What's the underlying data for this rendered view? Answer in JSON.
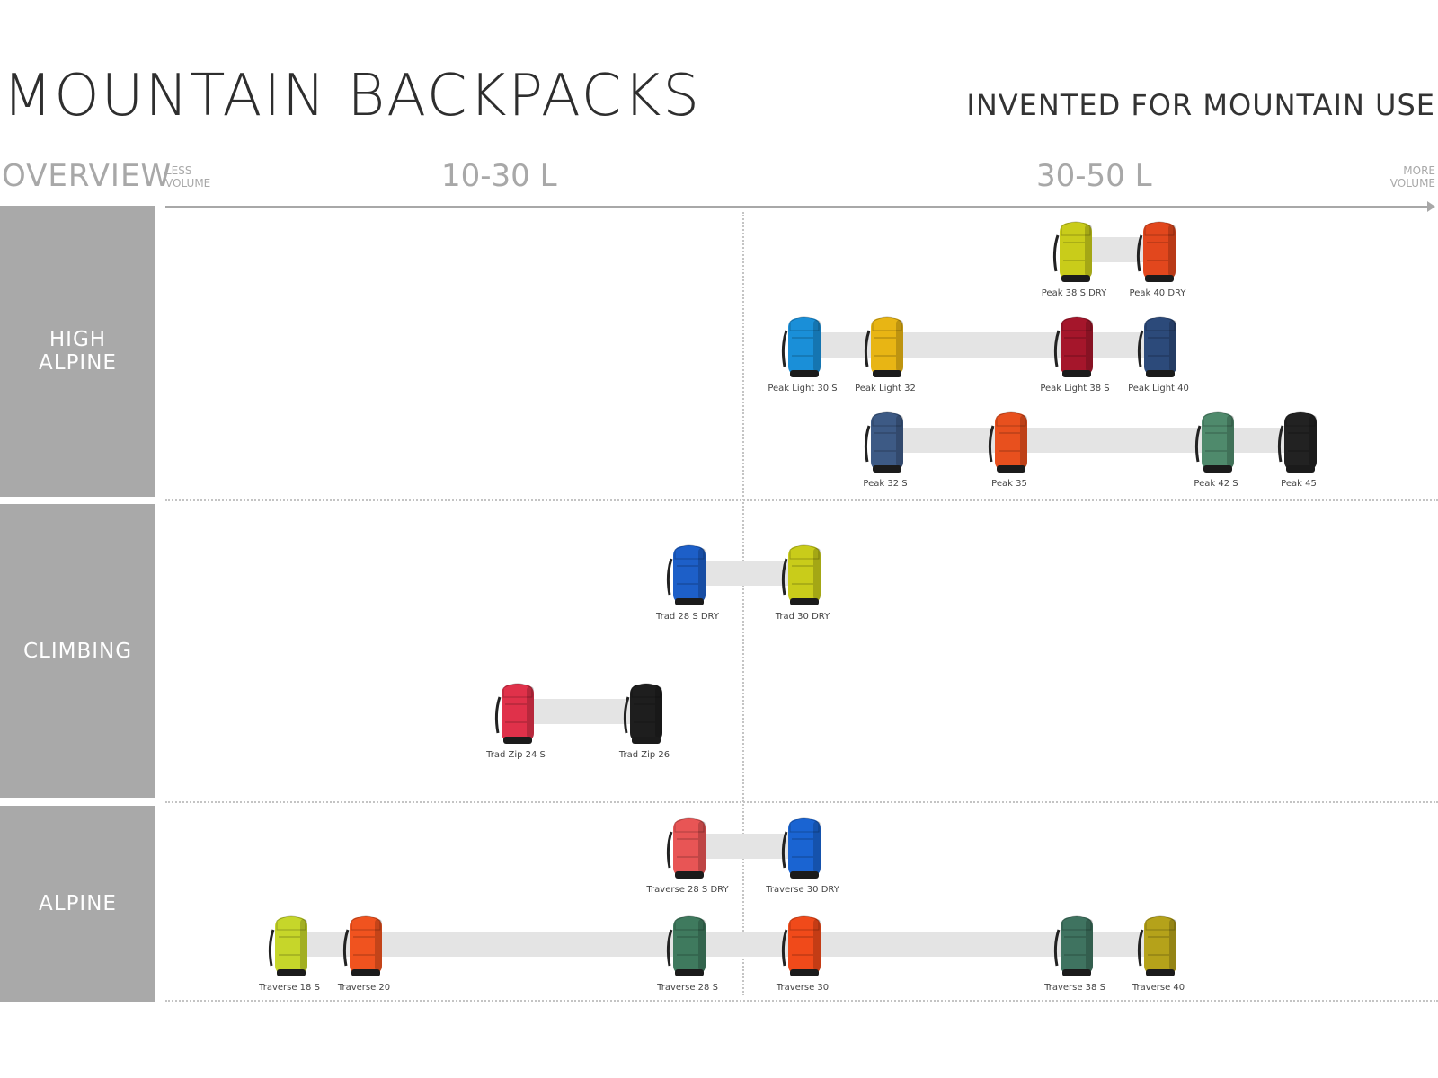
{
  "header": {
    "title": "MOUNTAIN BACKPACKS",
    "subtitle": "INVENTED FOR MOUNTAIN USE"
  },
  "scale": {
    "overview": "OVERVIEW",
    "less_volume": "LESS\nVOLUME",
    "more_volume": "MORE\nVOLUME",
    "range_low": "10-30 L",
    "range_high": "30-50 L"
  },
  "categories": [
    {
      "label": "HIGH\nALPINE"
    },
    {
      "label": "CLIMBING"
    },
    {
      "label": "ALPINE"
    }
  ],
  "colors": {
    "category_bg": "#a9a9a9",
    "axis": "#a8a8a8",
    "connector": "#e4e4e4"
  },
  "rows": [
    {
      "packs": [
        {
          "name": "Peak 38 S DRY",
          "color": "#c9cc1a"
        },
        {
          "name": "Peak 40 DRY",
          "color": "#e2471d"
        }
      ]
    },
    {
      "packs": [
        {
          "name": "Peak Light 30 S",
          "color": "#1a8fd8"
        },
        {
          "name": "Peak Light 32",
          "color": "#e8b514"
        },
        {
          "name": "Peak Light 38 S",
          "color": "#a5162b"
        },
        {
          "name": "Peak Light 40",
          "color": "#2c4a7a"
        }
      ]
    },
    {
      "packs": [
        {
          "name": "Peak 32 S",
          "color": "#3d5a85"
        },
        {
          "name": "Peak 35",
          "color": "#e8501e"
        },
        {
          "name": "Peak 42 S",
          "color": "#4f8a6c"
        },
        {
          "name": "Peak 45",
          "color": "#222222"
        }
      ]
    },
    {
      "packs": [
        {
          "name": "Trad 28 S DRY",
          "color": "#1d5fc8"
        },
        {
          "name": "Trad 30 DRY",
          "color": "#c9cc1a"
        }
      ]
    },
    {
      "packs": [
        {
          "name": "Trad Zip 24 S",
          "color": "#e0314a"
        },
        {
          "name": "Trad Zip 26",
          "color": "#1e1e1e"
        }
      ]
    },
    {
      "packs": [
        {
          "name": "Traverse 28 S DRY",
          "color": "#e85555"
        },
        {
          "name": "Traverse 30 DRY",
          "color": "#1a64d2"
        }
      ]
    },
    {
      "packs": [
        {
          "name": "Traverse 18 S",
          "color": "#c6d62a"
        },
        {
          "name": "Traverse 20",
          "color": "#f0531f"
        },
        {
          "name": "Traverse 28 S",
          "color": "#3f7a5e"
        },
        {
          "name": "Traverse 30",
          "color": "#f04a1a"
        },
        {
          "name": "Traverse 38 S",
          "color": "#3f7360"
        },
        {
          "name": "Traverse 40",
          "color": "#b5a21a"
        }
      ]
    }
  ]
}
